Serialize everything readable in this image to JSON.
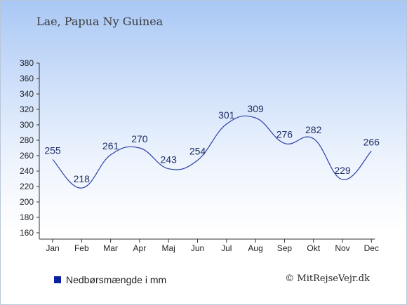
{
  "header": {
    "title": "Lae, Papua Ny Guinea"
  },
  "legend": {
    "label": "Nedbørsmængde i mm"
  },
  "credit": {
    "text": "© MitRejseVejr.dk"
  },
  "colors": {
    "series": "#2b3fa8",
    "legend_swatch": "#0b1fa0"
  },
  "chart_data": {
    "type": "line",
    "title": "",
    "xlabel": "",
    "ylabel": "",
    "categories": [
      "Jan",
      "Feb",
      "Mar",
      "Apr",
      "Maj",
      "Jun",
      "Jul",
      "Aug",
      "Sep",
      "Okt",
      "Nov",
      "Dec"
    ],
    "series": [
      {
        "name": "Nedbørsmængde i mm",
        "values": [
          255,
          218,
          261,
          270,
          243,
          254,
          301,
          309,
          276,
          282,
          229,
          266
        ]
      }
    ],
    "y_ticks": [
      160,
      180,
      200,
      220,
      240,
      260,
      280,
      300,
      320,
      340,
      360,
      380
    ],
    "ylim": [
      160,
      380
    ],
    "grid": false,
    "smooth": true,
    "data_labels": true,
    "legend_position": "bottom-left"
  }
}
